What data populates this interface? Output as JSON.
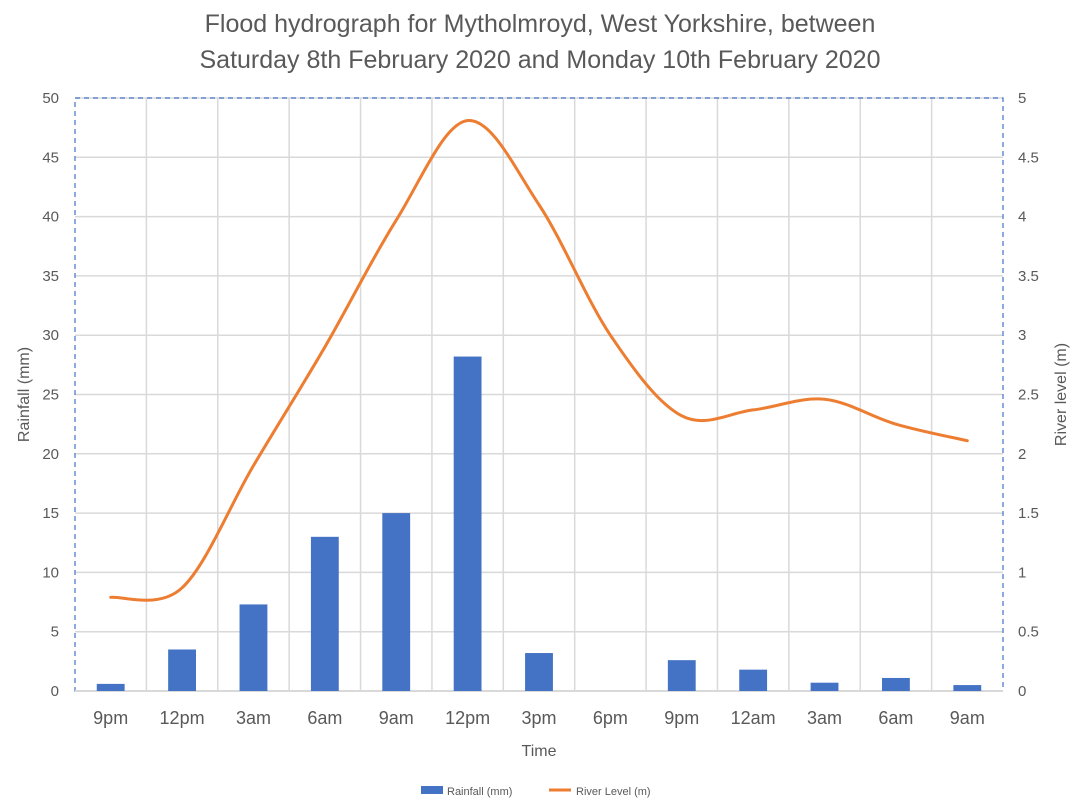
{
  "chart_data": {
    "type": "bar+line",
    "title_lines": [
      "Flood hydrograph for Mytholmroyd, West Yorkshire, between",
      "Saturday 8th February 2020 and Monday 10th February 2020"
    ],
    "xlabel": "Time",
    "ylabel_left": "Rainfall (mm)",
    "ylabel_right": "River level (m)",
    "categories": [
      "9pm",
      "12pm",
      "3am",
      "6am",
      "9am",
      "12pm",
      "3pm",
      "6pm",
      "9pm",
      "12am",
      "3am",
      "6am",
      "9am"
    ],
    "ylim_left": [
      0,
      50
    ],
    "yticks_left": [
      "0",
      "5",
      "10",
      "15",
      "20",
      "25",
      "30",
      "35",
      "40",
      "45",
      "50"
    ],
    "ylim_right": [
      0,
      5
    ],
    "yticks_right": [
      "0",
      "0.5",
      "1",
      "1.5",
      "2",
      "2.5",
      "3",
      "3.5",
      "4",
      "4.5",
      "5"
    ],
    "grid": true,
    "legend_position": "bottom",
    "series": [
      {
        "name": "Rainfall (mm)",
        "type": "bar",
        "axis": "left",
        "color": "#4472C4",
        "values": [
          0.6,
          3.5,
          7.3,
          13.0,
          15.0,
          28.2,
          3.2,
          0,
          2.6,
          1.8,
          0.7,
          1.1,
          0.5
        ]
      },
      {
        "name": "River Level (m)",
        "type": "line",
        "axis": "right",
        "color": "#ED7D31",
        "smooth": true,
        "values": [
          0.79,
          0.87,
          1.9,
          2.9,
          3.97,
          4.81,
          4.1,
          3.0,
          2.32,
          2.37,
          2.46,
          2.25,
          2.11
        ]
      }
    ]
  }
}
